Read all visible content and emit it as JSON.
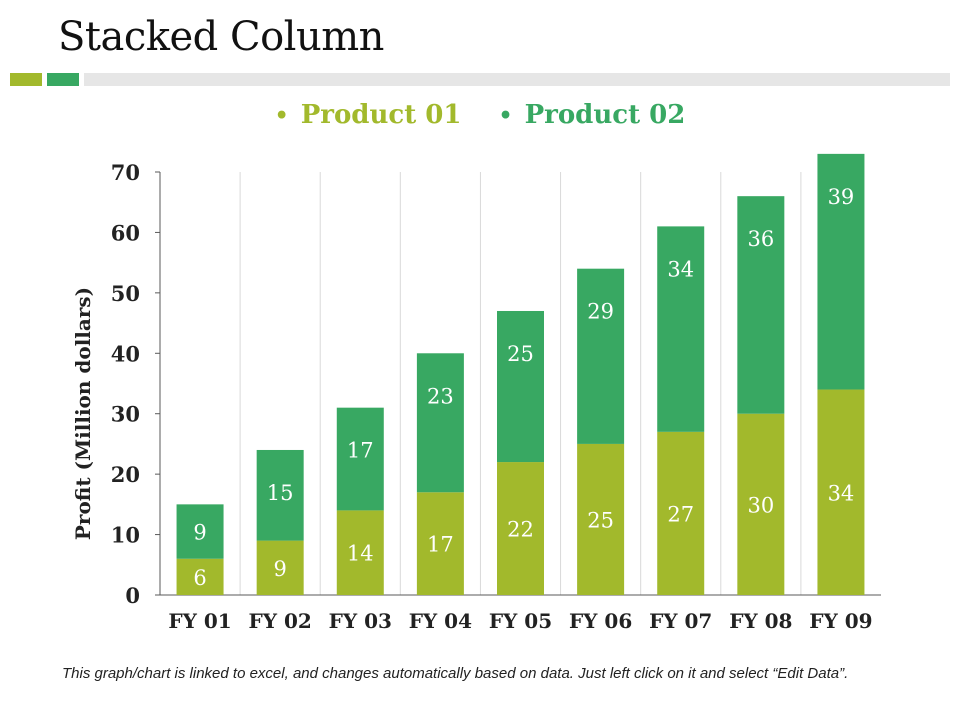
{
  "page": {
    "title": "Stacked Column",
    "footnote": "This graph/chart is linked to excel, and changes automatically based on data. Just left click on it and select “Edit Data”."
  },
  "colors": {
    "product01": "#a2b92c",
    "product02": "#38a862",
    "band_gray": "#e6e6e6",
    "grid": "#d9d9d9",
    "axis": "#595959"
  },
  "chart_data": {
    "type": "bar",
    "stacked": true,
    "title": "",
    "xlabel": "",
    "ylabel": "Profit  (Million dollars)",
    "ylim": [
      0,
      70
    ],
    "yticks": [
      0,
      10,
      20,
      30,
      40,
      50,
      60,
      70
    ],
    "categories": [
      "FY 01",
      "FY 02",
      "FY 03",
      "FY 04",
      "FY 05",
      "FY 06",
      "FY 07",
      "FY 08",
      "FY 09"
    ],
    "series": [
      {
        "name": "Product 01",
        "values": [
          6,
          9,
          14,
          17,
          22,
          25,
          27,
          30,
          34
        ]
      },
      {
        "name": "Product 02",
        "values": [
          9,
          15,
          17,
          23,
          25,
          29,
          34,
          36,
          39
        ]
      }
    ],
    "legend": "top-center"
  }
}
